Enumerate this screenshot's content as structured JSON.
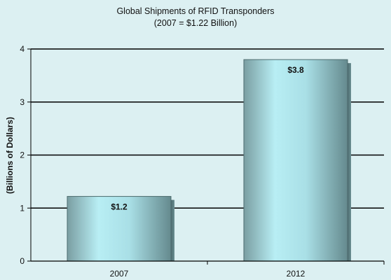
{
  "chart_data": {
    "type": "bar",
    "title": "Global Shipments of RFID Transponders",
    "subtitle": "(2007 = $1.22 Billion)",
    "xlabel": "",
    "ylabel": "(Billions of Dollars)",
    "categories": [
      "2007",
      "2012"
    ],
    "values": [
      1.22,
      3.8
    ],
    "data_labels": [
      "$1.2",
      "$3.8"
    ],
    "ylim": [
      0,
      4
    ],
    "yticks": [
      "0",
      "1",
      "2",
      "3",
      "4"
    ],
    "grid": true,
    "legend": "none"
  },
  "colors": {
    "background": "#dcf0f2",
    "bar_light": "#bdf0f6",
    "bar_dark": "#6f9397",
    "gridline": "#000000"
  }
}
